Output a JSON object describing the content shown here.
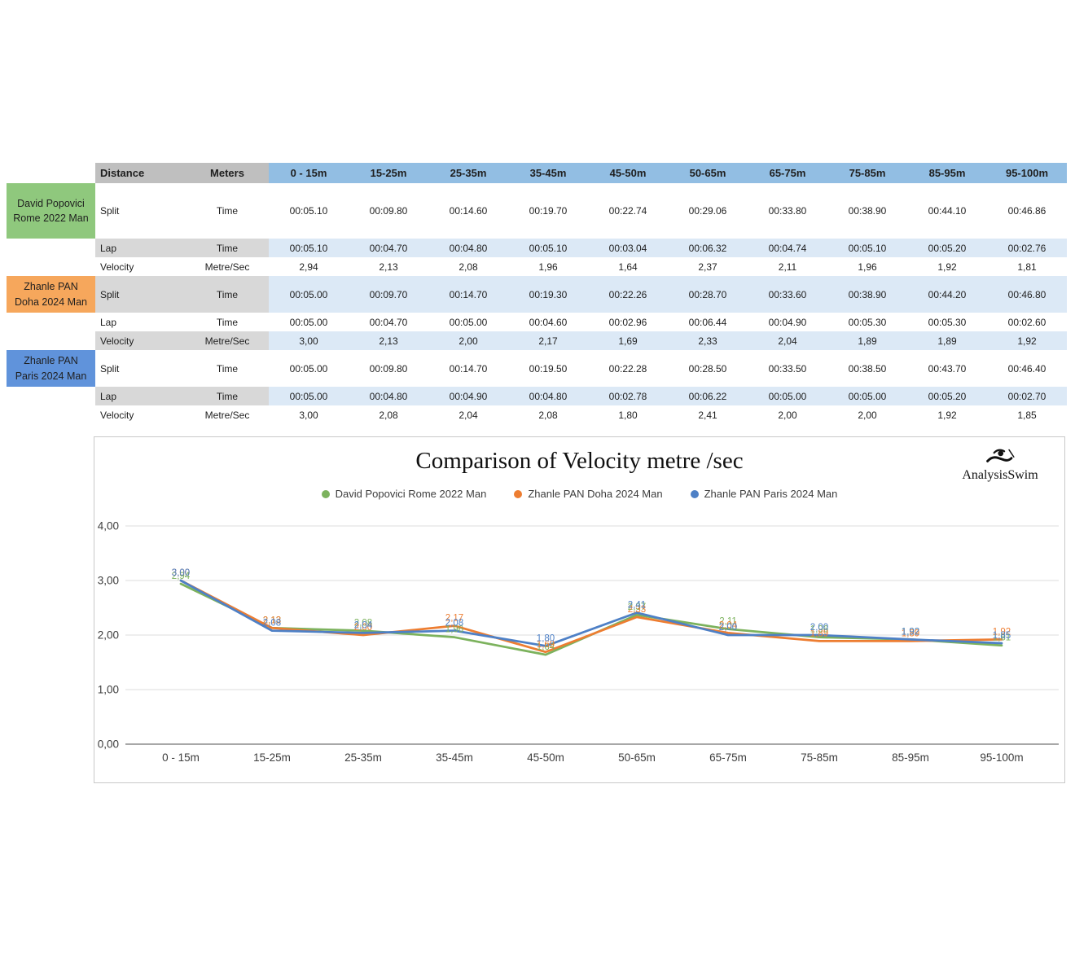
{
  "colors": {
    "header_gray": "#BFBFBF",
    "label_gray": "#D8D8D8",
    "header_blue": "#92BEE3",
    "row_blue": "#DCE9F6",
    "grid_line": "#DCDCDC",
    "axis_line": "#A8A8A8",
    "text_dark": "#1F1F1F"
  },
  "table": {
    "header": {
      "distance_label": "Distance",
      "meters_label": "Meters",
      "columns": [
        "0 - 15m",
        "15-25m",
        "25-35m",
        "35-45m",
        "45-50m",
        "50-65m",
        "65-75m",
        "75-85m",
        "85-95m",
        "95-100m"
      ]
    },
    "swimmers": [
      {
        "name": "David Popovici Rome 2022 Man",
        "color": "#8FC87D"
      },
      {
        "name": "Zhanle PAN Doha 2024 Man",
        "color": "#F6A75C"
      },
      {
        "name": "Zhanle PAN Paris 2024 Man",
        "color": "#6093DB"
      }
    ],
    "rows": [
      {
        "swimmer": 0,
        "kind": "split",
        "label": "Split",
        "unit": "Time",
        "shaded": false,
        "values": [
          "00:05.10",
          "00:09.80",
          "00:14.60",
          "00:19.70",
          "00:22.74",
          "00:29.06",
          "00:33.80",
          "00:38.90",
          "00:44.10",
          "00:46.86"
        ]
      },
      {
        "swimmer": 0,
        "kind": "lap",
        "label": "Lap",
        "unit": "Time",
        "shaded": true,
        "values": [
          "00:05.10",
          "00:04.70",
          "00:04.80",
          "00:05.10",
          "00:03.04",
          "00:06.32",
          "00:04.74",
          "00:05.10",
          "00:05.20",
          "00:02.76"
        ]
      },
      {
        "swimmer": 0,
        "kind": "velocity",
        "label": "Velocity",
        "unit": "Metre/Sec",
        "shaded": false,
        "values": [
          "2,94",
          "2,13",
          "2,08",
          "1,96",
          "1,64",
          "2,37",
          "2,11",
          "1,96",
          "1,92",
          "1,81"
        ]
      },
      {
        "swimmer": 1,
        "kind": "split",
        "label": "Split",
        "unit": "Time",
        "shaded": true,
        "values": [
          "00:05.00",
          "00:09.70",
          "00:14.70",
          "00:19.30",
          "00:22.26",
          "00:28.70",
          "00:33.60",
          "00:38.90",
          "00:44.20",
          "00:46.80"
        ]
      },
      {
        "swimmer": 1,
        "kind": "lap",
        "label": "Lap",
        "unit": "Time",
        "shaded": false,
        "values": [
          "00:05.00",
          "00:04.70",
          "00:05.00",
          "00:04.60",
          "00:02.96",
          "00:06.44",
          "00:04.90",
          "00:05.30",
          "00:05.30",
          "00:02.60"
        ]
      },
      {
        "swimmer": 1,
        "kind": "velocity",
        "label": "Velocity",
        "unit": "Metre/Sec",
        "shaded": true,
        "values": [
          "3,00",
          "2,13",
          "2,00",
          "2,17",
          "1,69",
          "2,33",
          "2,04",
          "1,89",
          "1,89",
          "1,92"
        ]
      },
      {
        "swimmer": 2,
        "kind": "split",
        "label": "Split",
        "unit": "Time",
        "shaded": false,
        "values": [
          "00:05.00",
          "00:09.80",
          "00:14.70",
          "00:19.50",
          "00:22.28",
          "00:28.50",
          "00:33.50",
          "00:38.50",
          "00:43.70",
          "00:46.40"
        ]
      },
      {
        "swimmer": 2,
        "kind": "lap",
        "label": "Lap",
        "unit": "Time",
        "shaded": true,
        "values": [
          "00:05.00",
          "00:04.80",
          "00:04.90",
          "00:04.80",
          "00:02.78",
          "00:06.22",
          "00:05.00",
          "00:05.00",
          "00:05.20",
          "00:02.70"
        ]
      },
      {
        "swimmer": 2,
        "kind": "velocity",
        "label": "Velocity",
        "unit": "Metre/Sec",
        "shaded": false,
        "values": [
          "3,00",
          "2,08",
          "2,04",
          "2,08",
          "1,80",
          "2,41",
          "2,00",
          "2,00",
          "1,92",
          "1,85"
        ]
      }
    ]
  },
  "chart_data": {
    "type": "line",
    "title": "Comparison of Velocity metre /sec",
    "xlabel": "",
    "ylabel": "",
    "grid": true,
    "legend_position": "top",
    "ylim": [
      0,
      4
    ],
    "y_ticks": [
      "0,00",
      "1,00",
      "2,00",
      "3,00",
      "4,00"
    ],
    "categories": [
      "0 - 15m",
      "15-25m",
      "25-35m",
      "35-45m",
      "45-50m",
      "50-65m",
      "65-75m",
      "75-85m",
      "85-95m",
      "95-100m"
    ],
    "series": [
      {
        "name": "David Popovici Rome 2022 Man",
        "color": "#7CB25D",
        "values": [
          2.94,
          2.13,
          2.08,
          1.96,
          1.64,
          2.37,
          2.11,
          1.96,
          1.92,
          1.81
        ]
      },
      {
        "name": "Zhanle PAN Doha 2024 Man",
        "color": "#ED7D31",
        "values": [
          3.0,
          2.13,
          2.0,
          2.17,
          1.69,
          2.33,
          2.04,
          1.89,
          1.89,
          1.92
        ]
      },
      {
        "name": "Zhanle PAN Paris 2024 Man",
        "color": "#4E80C6",
        "values": [
          3.0,
          2.08,
          2.04,
          2.08,
          1.8,
          2.41,
          2.0,
          2.0,
          1.92,
          1.85
        ]
      }
    ]
  },
  "logo": {
    "text": "AnalysisSwim"
  }
}
